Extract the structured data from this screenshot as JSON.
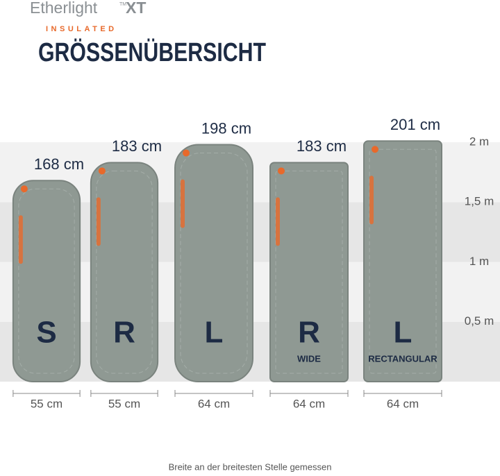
{
  "brand": {
    "name": "Etherlight",
    "mark": "TM",
    "model": "XT",
    "line": "INSULATED"
  },
  "chart_data": {
    "type": "bar",
    "title": "GRÖSSENÜBERSICHT",
    "categories": [
      "S",
      "R",
      "L",
      "R",
      "L"
    ],
    "category_notes": [
      null,
      null,
      null,
      "WIDE",
      "RECTANGULAR"
    ],
    "values": [
      1.68,
      1.83,
      1.98,
      1.83,
      2.01
    ],
    "value_labels": [
      "168 cm",
      "183 cm",
      "198 cm",
      "183 cm",
      "201 cm"
    ],
    "widths": [
      55,
      55,
      64,
      64,
      64
    ],
    "width_labels": [
      "55 cm",
      "55 cm",
      "64 cm",
      "64 cm",
      "64 cm"
    ],
    "shape": [
      "mummy",
      "mummy",
      "mummy",
      "rectangular",
      "rectangular"
    ],
    "color": "#8f9993",
    "ylim": [
      0,
      2
    ],
    "yticks": [
      {
        "value": 0.5,
        "label": "0,5 m"
      },
      {
        "value": 1,
        "label": "1 m"
      },
      {
        "value": 1.5,
        "label": "1,5 m"
      },
      {
        "value": 2,
        "label": "2 m"
      }
    ],
    "grid": true,
    "footnote": "Breite an der breitesten Stelle gemessen"
  }
}
